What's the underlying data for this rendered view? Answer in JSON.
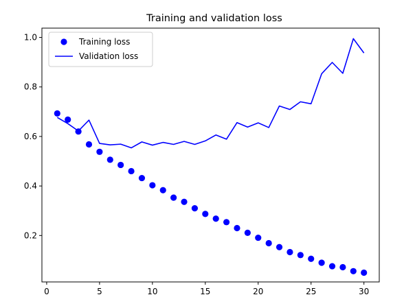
{
  "chart_data": {
    "type": "line",
    "title": "Training and validation loss",
    "xlabel": "",
    "ylabel": "",
    "xlim": [
      -0.45,
      31.45
    ],
    "ylim": [
      0.0125,
      1.0375
    ],
    "xticks": [
      0,
      5,
      10,
      15,
      20,
      25,
      30
    ],
    "yticks": [
      0.2,
      0.4,
      0.6,
      0.8,
      1.0
    ],
    "grid": false,
    "legend_position": "top-left",
    "series": [
      {
        "name": "Training loss",
        "style": "points",
        "color": "#0000ff",
        "x": [
          1,
          2,
          3,
          4,
          5,
          6,
          7,
          8,
          9,
          10,
          11,
          12,
          13,
          14,
          15,
          16,
          17,
          18,
          19,
          20,
          21,
          22,
          23,
          24,
          25,
          26,
          27,
          28,
          29,
          30
        ],
        "y": [
          0.693,
          0.668,
          0.62,
          0.568,
          0.538,
          0.506,
          0.485,
          0.46,
          0.432,
          0.403,
          0.383,
          0.353,
          0.336,
          0.31,
          0.287,
          0.268,
          0.254,
          0.23,
          0.211,
          0.191,
          0.169,
          0.153,
          0.133,
          0.121,
          0.106,
          0.09,
          0.076,
          0.072,
          0.056,
          0.05
        ]
      },
      {
        "name": "Validation loss",
        "style": "line",
        "color": "#0000ff",
        "x": [
          1,
          2,
          3,
          4,
          5,
          6,
          7,
          8,
          9,
          10,
          11,
          12,
          13,
          14,
          15,
          16,
          17,
          18,
          19,
          20,
          21,
          22,
          23,
          24,
          25,
          26,
          27,
          28,
          29,
          30
        ],
        "y": [
          0.677,
          0.652,
          0.622,
          0.666,
          0.572,
          0.566,
          0.569,
          0.554,
          0.578,
          0.565,
          0.576,
          0.568,
          0.58,
          0.568,
          0.582,
          0.606,
          0.589,
          0.656,
          0.638,
          0.655,
          0.636,
          0.723,
          0.709,
          0.74,
          0.732,
          0.853,
          0.899,
          0.855,
          0.995,
          0.937
        ]
      }
    ]
  }
}
